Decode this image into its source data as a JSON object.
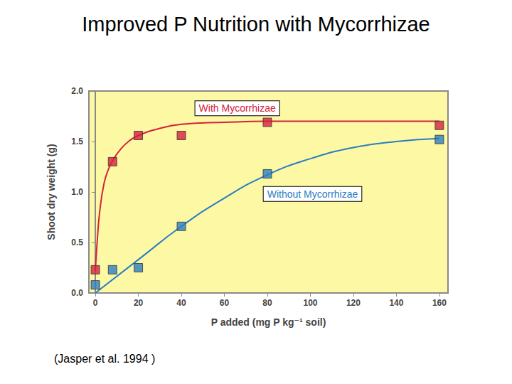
{
  "chart_data": {
    "type": "scatter",
    "title": "Improved P Nutrition with Mycorrhizae",
    "x_label": "P added (mg P kg⁻¹ soil)",
    "y_label": "Shoot dry weight (g)",
    "source": "(Jasper et al. 1994 )",
    "xlim": [
      -3,
      164
    ],
    "xticks": [
      0,
      20,
      40,
      60,
      80,
      100,
      120,
      140,
      160
    ],
    "ylim": [
      0,
      2
    ],
    "yticks": [
      {
        "value": 0,
        "label": "0.0"
      },
      {
        "value": 0.5,
        "label": "0.5"
      },
      {
        "value": 1,
        "label": "1.0"
      },
      {
        "value": 1.5,
        "label": "1.5"
      },
      {
        "value": 2,
        "label": "2.0"
      }
    ],
    "grid": false,
    "series": [
      {
        "name": "With Mycorrhizae",
        "color": "#d4213d",
        "marker": "square",
        "x": [
          0,
          8,
          20,
          40,
          80,
          160
        ],
        "values": [
          0.23,
          1.3,
          1.56,
          1.56,
          1.69,
          1.66
        ],
        "curve": {
          "x": [
            0,
            1,
            2,
            4,
            6,
            8,
            12,
            16,
            20,
            30,
            40,
            60,
            80,
            120,
            160
          ],
          "values": [
            0.22,
            0.55,
            0.8,
            1.08,
            1.22,
            1.31,
            1.43,
            1.51,
            1.56,
            1.63,
            1.67,
            1.69,
            1.7,
            1.7,
            1.7
          ]
        },
        "name_at": [
          66,
          1.83
        ]
      },
      {
        "name": "Without Mycorrhizae",
        "color": "#2a7dc4",
        "marker": "square",
        "x": [
          0,
          8,
          20,
          40,
          80,
          160
        ],
        "values": [
          0.08,
          0.23,
          0.25,
          0.66,
          1.18,
          1.52
        ],
        "curve": {
          "x": [
            0,
            20,
            40,
            60,
            80,
            100,
            120,
            140,
            160
          ],
          "values": [
            0,
            0.33,
            0.66,
            0.94,
            1.17,
            1.33,
            1.44,
            1.5,
            1.53
          ]
        },
        "name_at": [
          101,
          0.98
        ]
      }
    ]
  }
}
